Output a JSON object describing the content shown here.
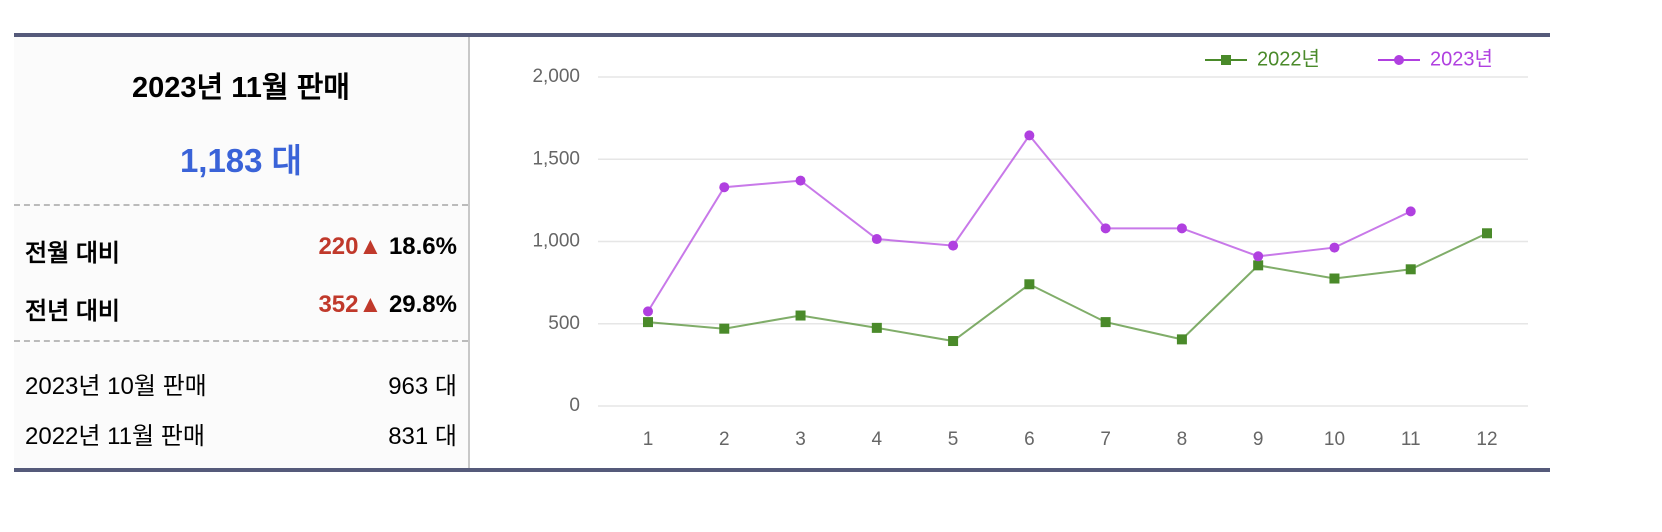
{
  "summary": {
    "title": "2023년 11월 판매",
    "total": "1,183 대",
    "comparisons": [
      {
        "label": "전월 대비",
        "diff": "220",
        "arrow": "▲",
        "pct": "18.6%"
      },
      {
        "label": "전년 대비",
        "diff": "352",
        "arrow": "▲",
        "pct": "29.8%"
      }
    ],
    "details": [
      {
        "label": "2023년 10월 판매",
        "value": "963 대"
      },
      {
        "label": "2022년 11월 판매",
        "value": "831 대"
      }
    ]
  },
  "chart_data": {
    "type": "line",
    "categories": [
      "1",
      "2",
      "3",
      "4",
      "5",
      "6",
      "7",
      "8",
      "9",
      "10",
      "11",
      "12"
    ],
    "series": [
      {
        "name": "2022년",
        "color": "#4a8a2a",
        "marker": "square",
        "values": [
          510,
          470,
          550,
          475,
          395,
          740,
          510,
          405,
          855,
          775,
          831,
          1050
        ]
      },
      {
        "name": "2023년",
        "color": "#b040e0",
        "marker": "circle",
        "values": [
          575,
          1330,
          1370,
          1015,
          975,
          1645,
          1080,
          1080,
          910,
          963,
          1183,
          null
        ]
      }
    ],
    "ylim": [
      0,
      2000
    ],
    "yticks": [
      0,
      500,
      {
        "value": 1000,
        "label": "1,000"
      },
      {
        "value": 1500,
        "label": "1,500"
      },
      {
        "value": 2000,
        "label": "2,000"
      }
    ],
    "grid": true,
    "legend": "top-right"
  }
}
